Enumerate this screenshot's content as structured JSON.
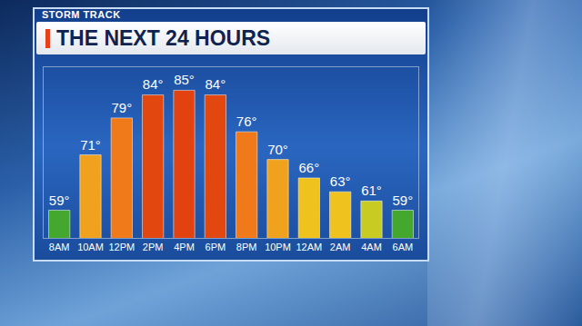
{
  "chart_data": {
    "type": "bar",
    "title": "THE NEXT 24 HOURS",
    "subtitle": "STORM TRACK",
    "categories": [
      "8AM",
      "10AM",
      "12PM",
      "2PM",
      "4PM",
      "6PM",
      "8PM",
      "10PM",
      "12AM",
      "2AM",
      "4AM",
      "6AM"
    ],
    "values": [
      59,
      71,
      79,
      84,
      85,
      84,
      76,
      70,
      66,
      63,
      61,
      59
    ],
    "value_labels": [
      "59°",
      "71°",
      "79°",
      "84°",
      "85°",
      "84°",
      "76°",
      "70°",
      "66°",
      "63°",
      "61°",
      "59°"
    ],
    "colors": [
      "#45a82e",
      "#f0a21e",
      "#f07a1a",
      "#e2470f",
      "#e2420f",
      "#e2470f",
      "#f07a1a",
      "#f0a21e",
      "#f0c21e",
      "#f0c21e",
      "#c8cc22",
      "#45a82e"
    ],
    "ylim": [
      53,
      90
    ],
    "data_labels": true,
    "tick_labels": "x",
    "grid": false
  }
}
